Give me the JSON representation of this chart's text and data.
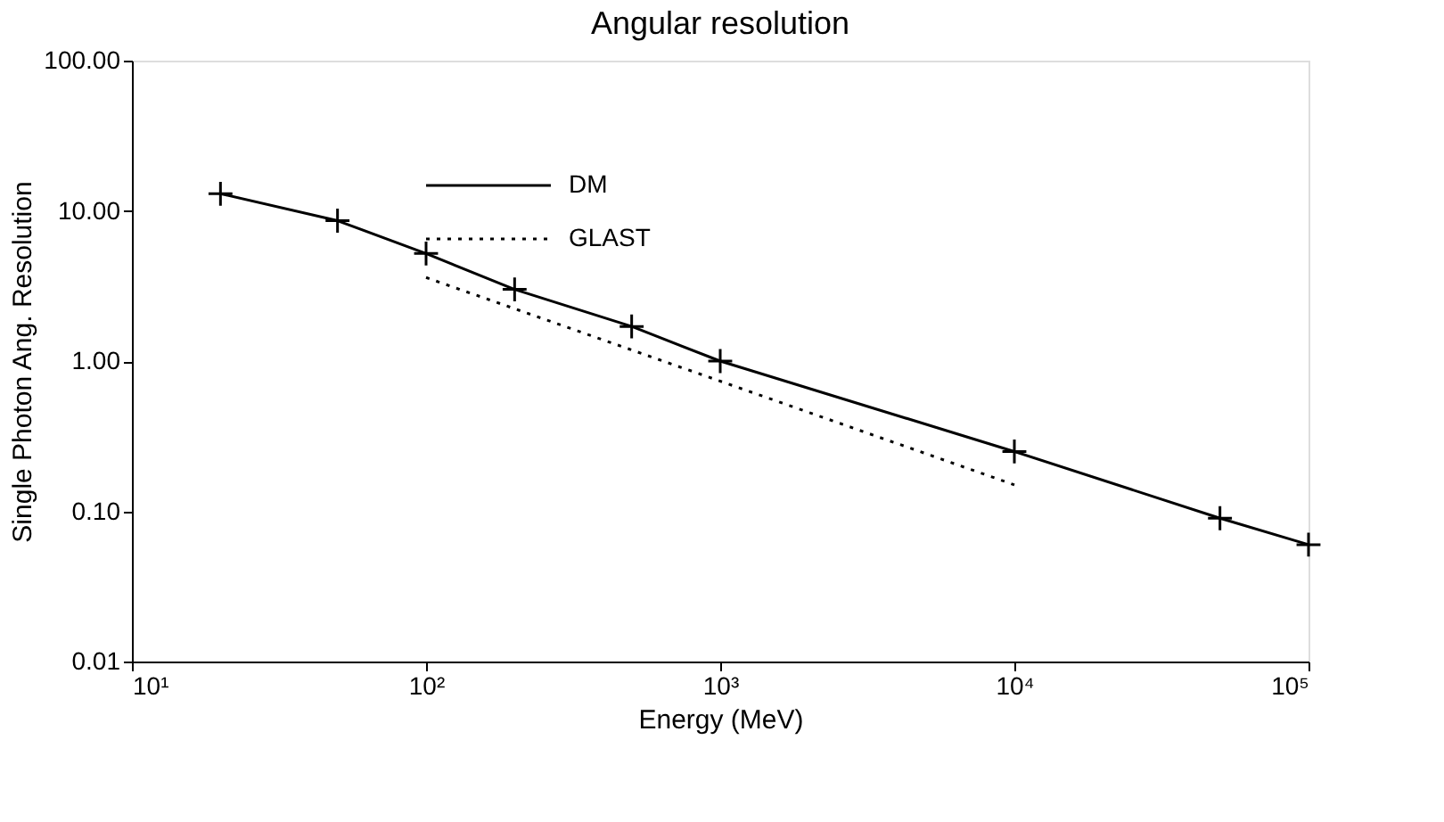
{
  "chart_data": {
    "type": "line",
    "title": "Angular resolution",
    "xlabel": "Energy (MeV)",
    "ylabel": "Single Photon Ang. Resolution",
    "log": "xy",
    "xlim": [
      10,
      100000
    ],
    "ylim": [
      0.01,
      100
    ],
    "xticks": [
      {
        "value": 10,
        "label": "10¹"
      },
      {
        "value": 100,
        "label": "10²"
      },
      {
        "value": 1000,
        "label": "10³"
      },
      {
        "value": 10000,
        "label": "10⁴"
      },
      {
        "value": 100000,
        "label": "10⁵"
      }
    ],
    "yticks": [
      {
        "value": 0.01,
        "label": "0.01"
      },
      {
        "value": 0.1,
        "label": "0.10"
      },
      {
        "value": 1,
        "label": "1.00"
      },
      {
        "value": 10,
        "label": "10.00"
      },
      {
        "value": 100,
        "label": "100.00"
      }
    ],
    "grid": false,
    "legend": "top left",
    "series": [
      {
        "name": "DM",
        "color": "#000000",
        "line_style": "solid",
        "marker": "cross",
        "x": [
          20,
          50,
          100,
          200,
          500,
          1000,
          10000,
          50000,
          100000
        ],
        "values": [
          13,
          8.6,
          5.2,
          3.0,
          1.7,
          1.0,
          0.25,
          0.09,
          0.06
        ]
      },
      {
        "name": "GLAST",
        "color": "#000000",
        "line_style": "dotted",
        "marker": "none",
        "x": [
          100,
          10000
        ],
        "values": [
          3.6,
          0.15
        ]
      }
    ]
  }
}
